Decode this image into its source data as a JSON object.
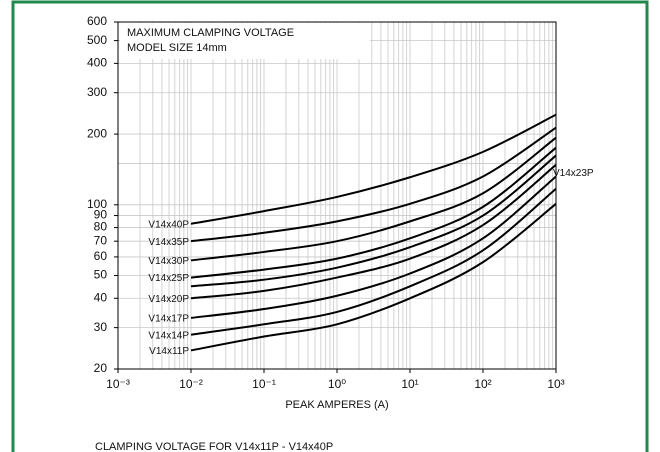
{
  "chart_data": {
    "type": "line",
    "title": "MAXIMUM CLAMPING VOLTAGE",
    "subtitle": "MODEL SIZE 14mm",
    "x_label": "PEAK AMPERES (A)",
    "caption": "CLAMPING VOLTAGE FOR     V14x11P - V14x40P",
    "log_x": true,
    "log_y": true,
    "grid": true,
    "x": [
      0.01,
      0.1,
      1,
      10,
      100,
      1000
    ],
    "xlim": [
      0.001,
      1000
    ],
    "xticks": [
      {
        "value": 0.001,
        "label": "10⁻³"
      },
      {
        "value": 0.01,
        "label": "10⁻²"
      },
      {
        "value": 0.1,
        "label": "10⁻¹"
      },
      {
        "value": 1,
        "label": "10⁰"
      },
      {
        "value": 10,
        "label": "10¹"
      },
      {
        "value": 100,
        "label": "10²"
      },
      {
        "value": 1000,
        "label": "10³"
      }
    ],
    "ylim": [
      20,
      600
    ],
    "yticks": [
      20,
      30,
      40,
      50,
      60,
      70,
      80,
      90,
      100,
      200,
      300,
      400,
      500,
      600
    ],
    "series": [
      {
        "name": "V14x11P",
        "color": "#000000",
        "values": [
          24,
          27.5,
          31,
          40,
          57,
          101
        ]
      },
      {
        "name": "V14x14P",
        "color": "#000000",
        "values": [
          28,
          31,
          35,
          45,
          64,
          117
        ]
      },
      {
        "name": "V14x17P",
        "color": "#000000",
        "values": [
          33,
          36,
          41,
          51,
          72,
          132
        ]
      },
      {
        "name": "V14x20P",
        "color": "#000000",
        "values": [
          40,
          43,
          49,
          59,
          82,
          148
        ]
      },
      {
        "name": "V14x23P",
        "color": "#000000",
        "values": [
          45,
          48,
          54,
          66,
          90,
          162
        ]
      },
      {
        "name": "V14x25P",
        "color": "#000000",
        "values": [
          49,
          53,
          59,
          72,
          98,
          175
        ]
      },
      {
        "name": "V14x30P",
        "color": "#000000",
        "values": [
          58,
          63,
          70,
          85,
          112,
          193
        ]
      },
      {
        "name": "V14x35P",
        "color": "#000000",
        "values": [
          70,
          76,
          85,
          101,
          132,
          213
        ]
      },
      {
        "name": "V14x40P",
        "color": "#000000",
        "values": [
          83,
          94,
          108,
          131,
          168,
          242
        ]
      }
    ]
  }
}
